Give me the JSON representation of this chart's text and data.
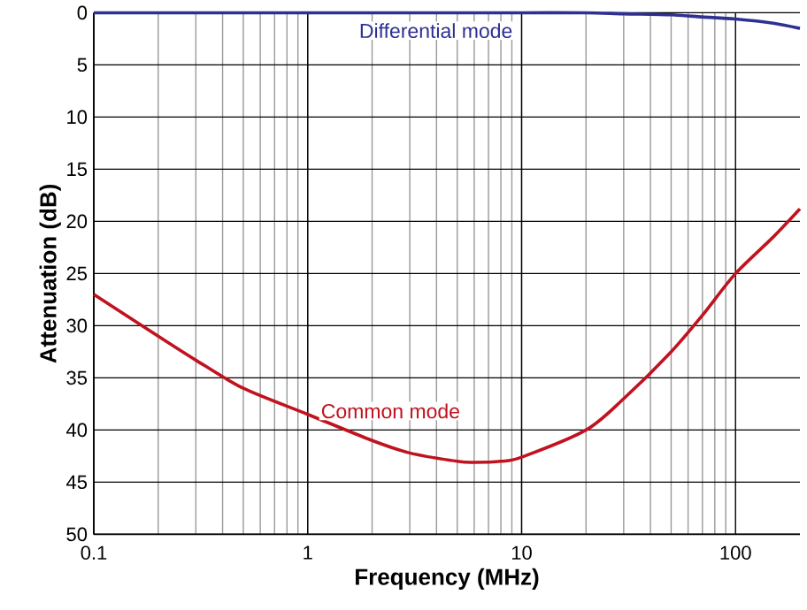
{
  "chart_data": {
    "type": "line",
    "xlabel": "Frequency (MHz)",
    "ylabel": "Attenuation (dB)",
    "log": "x",
    "grid": true,
    "legend": false,
    "marker": "none",
    "line_style": "solid",
    "xlim": [
      0.1,
      200
    ],
    "xticks": [
      0.1,
      1,
      10,
      100
    ],
    "ylim": [
      50,
      0
    ],
    "yticks": [
      0,
      5,
      10,
      15,
      20,
      25,
      30,
      35,
      40,
      45,
      50
    ],
    "series": [
      {
        "name": "Differential mode",
        "color": "#2e3192",
        "x": [
          0.1,
          0.2,
          0.5,
          1,
          2,
          5,
          10,
          20,
          30,
          50,
          70,
          100,
          150,
          200
        ],
        "values": [
          0,
          0,
          0,
          0,
          0,
          0,
          0,
          0,
          0.1,
          0.2,
          0.4,
          0.6,
          1.0,
          1.5
        ]
      },
      {
        "name": "Common mode",
        "color": "#c1121f",
        "x": [
          0.1,
          0.2,
          0.3,
          0.5,
          1,
          2,
          3,
          5,
          6,
          8,
          10,
          20,
          30,
          50,
          70,
          100,
          150,
          200
        ],
        "values": [
          27,
          31,
          33.3,
          36,
          38.5,
          41,
          42.2,
          43,
          43.1,
          43,
          42.6,
          40,
          37,
          32.5,
          29,
          25,
          21.5,
          18.8
        ]
      }
    ]
  }
}
